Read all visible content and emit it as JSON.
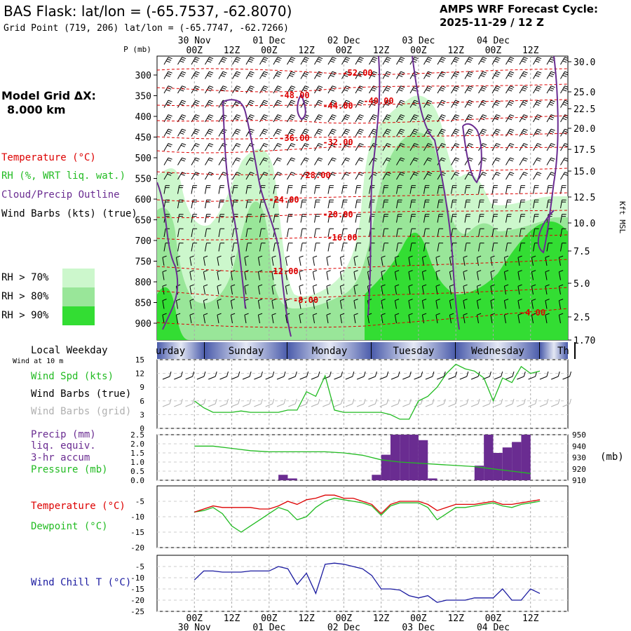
{
  "header": {
    "title": "BAS Flask:  lat/lon = (-65.7537, -62.8070)",
    "subtitle": "Grid Point (719, 206) lat/lon = (-65.7747, -62.7266)",
    "cycle_line1": "AMPS WRF Forecast Cycle:",
    "cycle_line2": "2025-11-29 / 12  Z"
  },
  "legend": {
    "model_grid_label": "Model Grid ΔX:",
    "model_grid_value": "8.000 km",
    "temperature": "Temperature (°C)",
    "rh": "RH (%, WRT liq. wat.)",
    "cloud": "Cloud/Precip Outline",
    "wind": "Wind Barbs (kts) (true)",
    "rh70": "RH > 70%",
    "rh80": "RH > 80%",
    "rh90": "RH > 90%",
    "rh70_color": "#ccf7cc",
    "rh80_color": "#99e699",
    "rh90_color": "#33dd33"
  },
  "colors": {
    "temperature": "#dd0000",
    "cloud": "#6a2c91",
    "wind_speed": "#22bb22",
    "precip": "#6a2c91",
    "pressure": "#22bb22",
    "dewpoint": "#22bb22",
    "wind_chill": "#1a1aa0",
    "weekday_band": "#4a5bab"
  },
  "time_axis": {
    "top_date_labels": [
      "30 Nov",
      "01 Dec",
      "02 Dec",
      "03 Dec",
      "04 Dec"
    ],
    "hour_labels": [
      "00Z",
      "12Z",
      "00Z",
      "12Z",
      "00Z",
      "12Z",
      "00Z",
      "12Z",
      "00Z",
      "12Z"
    ],
    "bottom_date_labels": [
      "30 Nov",
      "01 Dec",
      "02 Dec",
      "03 Dec",
      "04 Dec"
    ]
  },
  "weekday": {
    "label": "Local Weekday",
    "days": [
      "urday",
      "Sunday",
      "Monday",
      "Tuesday",
      "Wednesday",
      "Th"
    ],
    "wind_at_10m": "Wind at 10 m"
  },
  "panels": {
    "wind_speed_label": "Wind Spd (kts)",
    "wind_barbs_true_label": "Wind Barbs (true)",
    "wind_barbs_grid_label": "Wind Barbs (grid)",
    "precip_label": "Precip (mm)",
    "precip_sub1": "liq. equiv.",
    "precip_sub2": "3-hr accum",
    "pressure_label": "Pressure (mb)",
    "pressure_unit": "(mb)",
    "temperature_label": "Temperature (°C)",
    "dewpoint_label": "Dewpoint (°C)",
    "wind_chill_label": "Wind Chill T (°C)"
  },
  "chart_data": [
    {
      "type": "contour",
      "panel": "cross-section",
      "ylabel_left": "P (mb)",
      "ylabel_right": "Kft MSL",
      "pressure_ticks": [
        300,
        350,
        400,
        450,
        500,
        550,
        600,
        650,
        700,
        750,
        800,
        850,
        900
      ],
      "height_ticks": [
        "30.0",
        "25.0",
        "22.5",
        "20.0",
        "17.5",
        "15.0",
        "12.5",
        "10.0",
        "7.5",
        "5.0",
        "2.5",
        "1.70"
      ],
      "temperature_contour_labels": [
        "-52.00",
        "-48.00",
        "-44.00",
        "-40.00",
        "-36.00",
        "-32.00",
        "-28.00",
        "-24.00",
        "-20.00",
        "-16.00",
        "-12.00",
        "-8.00",
        "-4.00"
      ]
    },
    {
      "type": "line",
      "panel": "wind_speed",
      "ylim": [
        0,
        15
      ],
      "yticks": [
        0,
        3,
        6,
        9,
        12,
        15
      ],
      "x_hours": [
        0,
        3,
        6,
        9,
        12,
        15,
        18,
        21,
        24,
        27,
        30,
        33,
        36,
        39,
        42,
        45,
        48,
        51,
        54,
        57,
        60,
        63,
        66,
        69,
        72,
        75,
        78,
        81,
        84,
        87,
        90,
        93,
        96,
        99,
        102,
        105,
        108,
        111
      ],
      "series": [
        {
          "values": [
            6,
            4.5,
            3.5,
            3.5,
            3.5,
            3.8,
            3.5,
            3.5,
            3.5,
            3.5,
            4,
            4,
            8,
            7,
            11.5,
            4,
            3.5,
            3.5,
            3.5,
            3.5,
            3.5,
            3,
            2,
            2,
            6,
            7,
            9,
            12,
            14,
            13,
            12.5,
            11,
            6,
            11,
            10,
            13.5,
            12,
            12.5
          ]
        }
      ]
    },
    {
      "type": "bar+line",
      "panel": "precip_pressure",
      "ylim_precip": [
        0,
        2.5
      ],
      "yticks_precip": [
        "0.0",
        "0.5",
        "1.0",
        "1.5",
        "2.0",
        "2.5"
      ],
      "ylim_pressure": [
        910,
        950
      ],
      "yticks_pressure": [
        910,
        920,
        930,
        940,
        950
      ],
      "precip_bars": [
        {
          "start_h": 27,
          "end_h": 30,
          "value": 0.3
        },
        {
          "start_h": 30,
          "end_h": 33,
          "value": 0.1
        },
        {
          "start_h": 57,
          "end_h": 60,
          "value": 0.3
        },
        {
          "start_h": 60,
          "end_h": 63,
          "value": 1.4
        },
        {
          "start_h": 63,
          "end_h": 66,
          "value": 2.5
        },
        {
          "start_h": 66,
          "end_h": 69,
          "value": 2.5
        },
        {
          "start_h": 69,
          "end_h": 72,
          "value": 2.5
        },
        {
          "start_h": 72,
          "end_h": 75,
          "value": 2.2
        },
        {
          "start_h": 75,
          "end_h": 78,
          "value": 0.1
        },
        {
          "start_h": 90,
          "end_h": 93,
          "value": 0.8
        },
        {
          "start_h": 93,
          "end_h": 96,
          "value": 2.5
        },
        {
          "start_h": 96,
          "end_h": 99,
          "value": 1.5
        },
        {
          "start_h": 99,
          "end_h": 102,
          "value": 1.8
        },
        {
          "start_h": 102,
          "end_h": 105,
          "value": 2.1
        },
        {
          "start_h": 105,
          "end_h": 108,
          "value": 2.5
        }
      ],
      "pressure_x_hours": [
        0,
        6,
        12,
        18,
        24,
        30,
        36,
        42,
        48,
        54,
        60,
        66,
        72,
        78,
        84,
        90,
        96,
        102,
        108
      ],
      "pressure_values": [
        940,
        940,
        938,
        936,
        935,
        935,
        935,
        935,
        934,
        932,
        928,
        926,
        925,
        924,
        923,
        922,
        920,
        918,
        916
      ]
    },
    {
      "type": "line",
      "panel": "temperature_dewpoint",
      "ylim": [
        -20,
        0
      ],
      "yticks": [
        -5,
        -10,
        -15,
        -20
      ],
      "x_hours": [
        0,
        3,
        6,
        9,
        12,
        15,
        18,
        21,
        24,
        27,
        30,
        33,
        36,
        39,
        42,
        45,
        48,
        51,
        54,
        57,
        60,
        63,
        66,
        69,
        72,
        75,
        78,
        81,
        84,
        87,
        90,
        93,
        96,
        99,
        102,
        105,
        108,
        111
      ],
      "series": [
        {
          "name": "Temperature (°C)",
          "values": [
            -8.5,
            -7.5,
            -6.5,
            -7,
            -7,
            -7,
            -7,
            -7.5,
            -7.5,
            -6.5,
            -5,
            -6,
            -4.5,
            -4,
            -3,
            -3,
            -4,
            -4,
            -5,
            -6,
            -9,
            -6,
            -5,
            -5,
            -5,
            -6,
            -8,
            -7,
            -6,
            -6,
            -6,
            -5.5,
            -5,
            -6,
            -6,
            -5.5,
            -5,
            -4.5
          ]
        },
        {
          "name": "Dewpoint (°C)",
          "values": [
            -8.5,
            -8,
            -7,
            -9,
            -13,
            -15,
            -13,
            -11,
            -9,
            -7,
            -8,
            -11,
            -10,
            -7,
            -5,
            -4,
            -4.5,
            -5,
            -5.5,
            -6.5,
            -9.5,
            -6.5,
            -5.5,
            -5.5,
            -5.5,
            -7,
            -11,
            -9,
            -7,
            -7,
            -6.5,
            -6,
            -5.5,
            -6.5,
            -7,
            -6,
            -5.5,
            -5
          ]
        }
      ]
    },
    {
      "type": "line",
      "panel": "wind_chill",
      "ylim": [
        -25,
        0
      ],
      "yticks": [
        -5,
        -10,
        -15,
        -20,
        -25
      ],
      "x_hours": [
        0,
        3,
        6,
        9,
        12,
        15,
        18,
        21,
        24,
        27,
        30,
        33,
        36,
        39,
        42,
        45,
        48,
        51,
        54,
        57,
        60,
        63,
        66,
        69,
        72,
        75,
        78,
        81,
        84,
        87,
        90,
        93,
        96,
        99,
        102,
        105,
        108,
        111
      ],
      "series": [
        {
          "name": "Wind Chill T (°C)",
          "values": [
            -11,
            -7,
            -7,
            -7.5,
            -7.5,
            -7.5,
            -7,
            -7,
            -7,
            -5,
            -6,
            -13,
            -8,
            -17,
            -4,
            -3.5,
            -4,
            -5,
            -6,
            -9,
            -15,
            -15,
            -15.5,
            -18,
            -19,
            -18,
            -21,
            -20,
            -20,
            -20,
            -19,
            -19,
            -19,
            -15,
            -20,
            -20,
            -15,
            -17
          ]
        }
      ]
    }
  ]
}
